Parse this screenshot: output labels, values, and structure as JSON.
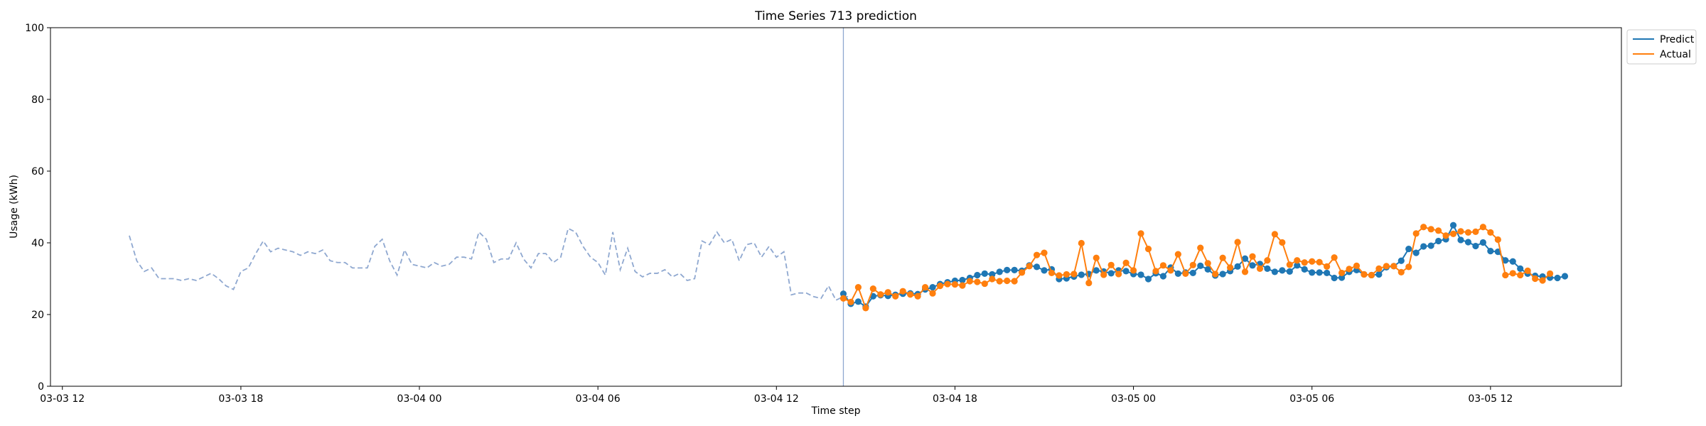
{
  "chart_data": {
    "type": "line",
    "title": "Time Series 713 prediction",
    "xlabel": "Time step",
    "ylabel": "Usage (kWh)",
    "ylim": [
      0,
      100
    ],
    "xlim": [
      "2024-03-03 11:36",
      "2024-03-05 16:24"
    ],
    "x_ticks": [
      "2024-03-03 12:00",
      "2024-03-03 18:00",
      "2024-03-04 00:00",
      "2024-03-04 06:00",
      "2024-03-04 12:00",
      "2024-03-04 18:00",
      "2024-03-05 00:00",
      "2024-03-05 06:00",
      "2024-03-05 12:00"
    ],
    "x_tick_labels": [
      "03-03 12",
      "03-03 18",
      "03-04 00",
      "03-04 06",
      "03-04 12",
      "03-04 18",
      "03-05 00",
      "03-05 06",
      "03-05 12"
    ],
    "y_ticks": [
      0,
      20,
      40,
      60,
      80,
      100
    ],
    "y_tick_labels": [
      "0",
      "20",
      "40",
      "60",
      "80",
      "100"
    ],
    "grid": false,
    "legend_position": "outside-top-right",
    "forecast_start": "2024-03-04 14:15",
    "colors": {
      "history": "#8fa8d0",
      "predict": "#1f77b4",
      "actual": "#ff7f0e",
      "divider": "#8fa8d0"
    },
    "legend": [
      {
        "name": "Predict",
        "color": "#1f77b4"
      },
      {
        "name": "Actual",
        "color": "#ff7f0e"
      }
    ],
    "history": {
      "start": "2024-03-03 14:15",
      "step_minutes": 15,
      "style": "dashed",
      "values": [
        42,
        35,
        32,
        33,
        30,
        30,
        30,
        29.5,
        30,
        29.5,
        30.5,
        31.5,
        30,
        28,
        27,
        32,
        33,
        37,
        40.5,
        37.5,
        38.5,
        38,
        37.5,
        36.5,
        37.5,
        37,
        38,
        35,
        34.5,
        34.5,
        33,
        33,
        33,
        39,
        41,
        35,
        31,
        38,
        34,
        33.5,
        33,
        34.5,
        33.5,
        34,
        36,
        36,
        35.5,
        43,
        41,
        34.5,
        35.5,
        35.5,
        40,
        35.5,
        33,
        37,
        37,
        34.5,
        36,
        44,
        43,
        39,
        36,
        34.5,
        31,
        43,
        32.5,
        38.5,
        32,
        30.5,
        31.5,
        31.5,
        32.5,
        30.5,
        31.5,
        29.5,
        30,
        40.5,
        39.5,
        43,
        40,
        41,
        35,
        39.5,
        40,
        36,
        39,
        36,
        37.5,
        25.5,
        26,
        26,
        25,
        24.5,
        28,
        24,
        25,
        25
      ]
    },
    "series": [
      {
        "name": "Predict",
        "start": "2024-03-04 14:15",
        "step_minutes": 15,
        "values": [
          25.8,
          23,
          23.6,
          22.2,
          25.1,
          25.4,
          25.2,
          25.5,
          25.8,
          25.9,
          25.7,
          27,
          27.6,
          28.5,
          29,
          29.4,
          29.6,
          30.2,
          31,
          31.4,
          31.2,
          31.9,
          32.4,
          32.4,
          32.2,
          33.7,
          33.3,
          32.3,
          32.6,
          29.9,
          30.1,
          30.6,
          31.1,
          31.3,
          32.3,
          32,
          31.5,
          32.3,
          32.1,
          31.3,
          31.1,
          29.9,
          31.5,
          30.7,
          33.1,
          31.4,
          31.7,
          31.6,
          33.6,
          32.6,
          30.9,
          31.3,
          32.1,
          33.4,
          35.6,
          33.7,
          34.1,
          32.8,
          31.9,
          32.3,
          32,
          33.7,
          32.6,
          31.7,
          31.7,
          31.6,
          30.2,
          30.3,
          31.9,
          32.4,
          31.2,
          31,
          31.2,
          33.2,
          33.5,
          35,
          38.3,
          37.2,
          39,
          39.2,
          40.5,
          41,
          44.9,
          40.8,
          40.2,
          39.1,
          40.1,
          37.7,
          37.5,
          35.1,
          34.8,
          32.8,
          31.4,
          30.8,
          30.6,
          30.3,
          30.2,
          30.7
        ]
      },
      {
        "name": "Actual",
        "start": "2024-03-04 14:15",
        "step_minutes": 15,
        "values": [
          24.5,
          23.5,
          27.6,
          21.8,
          27.2,
          25.6,
          26.2,
          25.1,
          26.5,
          25.6,
          25.1,
          27.6,
          25.9,
          28,
          28.5,
          28.4,
          28.1,
          29.3,
          29.1,
          28.6,
          29.9,
          29.3,
          29.4,
          29.3,
          31.7,
          33.5,
          36.6,
          37.2,
          31.6,
          30.9,
          31.2,
          31.3,
          39.9,
          28.8,
          35.8,
          31.1,
          33.8,
          31.3,
          34.4,
          32.3,
          42.6,
          38.3,
          32.1,
          33.7,
          32.3,
          36.8,
          31.4,
          33.8,
          38.6,
          34.3,
          31.3,
          35.8,
          33.1,
          40.2,
          31.9,
          36.2,
          32.8,
          35.1,
          42.4,
          40.1,
          33.9,
          35.1,
          34.5,
          34.8,
          34.6,
          33.4,
          35.9,
          31.6,
          32.7,
          33.6,
          31.2,
          31,
          32.8,
          33.5,
          33.5,
          31.8,
          33.3,
          42.6,
          44.4,
          43.8,
          43.4,
          42,
          42.5,
          43.2,
          42.9,
          43.1,
          44.4,
          42.9,
          40.9,
          31,
          31.5,
          31,
          32.2,
          30,
          29.5,
          31.4
        ]
      }
    ]
  }
}
